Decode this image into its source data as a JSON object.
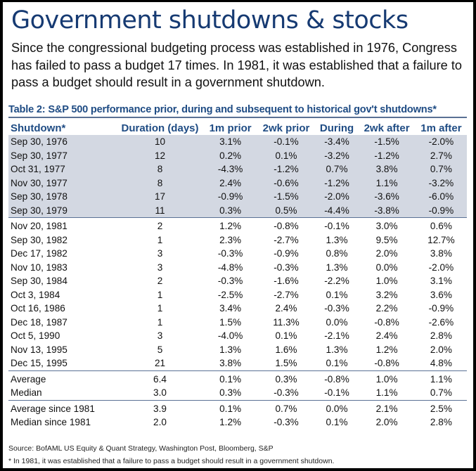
{
  "title": "Government shutdowns & stocks",
  "intro": "Since the congressional budgeting process was established in 1976, Congress has failed to pass a budget 17 times. In 1981, it was established that a failure to pass a budget should result in a government shutdown.",
  "colors": {
    "title": "#163a72",
    "header": "#1f4c84",
    "shaded_row": "#d3d8e2",
    "rule": "#5a7194"
  },
  "chart_data": {
    "type": "table",
    "title": "Table 2: S&P 500 performance prior, during and subsequent to historical gov't shutdowns*",
    "columns": [
      "Shutdown*",
      "Duration (days)",
      "1m prior",
      "2wk prior",
      "During",
      "2wk after",
      "1m after"
    ],
    "groups": [
      {
        "name": "pre-1981",
        "shaded": true,
        "rows": [
          [
            "Sep 30, 1976",
            "10",
            "3.1%",
            "-0.1%",
            "-3.4%",
            "-1.5%",
            "-2.0%"
          ],
          [
            "Sep 30, 1977",
            "12",
            "0.2%",
            "0.1%",
            "-3.2%",
            "-1.2%",
            "2.7%"
          ],
          [
            "Oct 31, 1977",
            "8",
            "-4.3%",
            "-1.2%",
            "0.7%",
            "3.8%",
            "0.7%"
          ],
          [
            "Nov 30, 1977",
            "8",
            "2.4%",
            "-0.6%",
            "-1.2%",
            "1.1%",
            "-3.2%"
          ],
          [
            "Sep 30, 1978",
            "17",
            "-0.9%",
            "-1.5%",
            "-2.0%",
            "-3.6%",
            "-6.0%"
          ],
          [
            "Sep 30, 1979",
            "11",
            "0.3%",
            "0.5%",
            "-4.4%",
            "-3.8%",
            "-0.9%"
          ]
        ]
      },
      {
        "name": "since-1981",
        "shaded": false,
        "rows": [
          [
            "Nov 20, 1981",
            "2",
            "1.2%",
            "-0.8%",
            "-0.1%",
            "3.0%",
            "0.6%"
          ],
          [
            "Sep 30, 1982",
            "1",
            "2.3%",
            "-2.7%",
            "1.3%",
            "9.5%",
            "12.7%"
          ],
          [
            "Dec 17, 1982",
            "3",
            "-0.3%",
            "-0.9%",
            "0.8%",
            "2.0%",
            "3.8%"
          ],
          [
            "Nov 10, 1983",
            "3",
            "-4.8%",
            "-0.3%",
            "1.3%",
            "0.0%",
            "-2.0%"
          ],
          [
            "Sep 30, 1984",
            "2",
            "-0.3%",
            "-1.6%",
            "-2.2%",
            "1.0%",
            "3.1%"
          ],
          [
            "Oct 3, 1984",
            "1",
            "-2.5%",
            "-2.7%",
            "0.1%",
            "3.2%",
            "3.6%"
          ],
          [
            "Oct 16, 1986",
            "1",
            "3.4%",
            "2.4%",
            "-0.3%",
            "2.2%",
            "-0.9%"
          ],
          [
            "Dec 18, 1987",
            "1",
            "1.5%",
            "11.3%",
            "0.0%",
            "-0.8%",
            "-2.6%"
          ],
          [
            "Oct 5, 1990",
            "3",
            "-4.0%",
            "0.1%",
            "-2.1%",
            "2.4%",
            "2.8%"
          ],
          [
            "Nov 13, 1995",
            "5",
            "1.3%",
            "1.6%",
            "1.3%",
            "1.2%",
            "2.0%"
          ],
          [
            "Dec 15, 1995",
            "21",
            "3.8%",
            "1.5%",
            "0.1%",
            "-0.8%",
            "4.8%"
          ]
        ]
      },
      {
        "name": "all-stats",
        "shaded": false,
        "rows": [
          [
            "Average",
            "6.4",
            "0.1%",
            "0.3%",
            "-0.8%",
            "1.0%",
            "1.1%"
          ],
          [
            "Median",
            "3.0",
            "0.3%",
            "-0.3%",
            "-0.1%",
            "1.1%",
            "0.7%"
          ]
        ]
      },
      {
        "name": "since-1981-stats",
        "shaded": false,
        "rows": [
          [
            "Average since 1981",
            "3.9",
            "0.1%",
            "0.7%",
            "0.0%",
            "2.1%",
            "2.5%"
          ],
          [
            "Median since 1981",
            "2.0",
            "1.2%",
            "-0.3%",
            "0.1%",
            "2.0%",
            "2.8%"
          ]
        ]
      }
    ]
  },
  "source": "Source: BofAML US Equity & Quant Strategy, Washington Post, Bloomberg, S&P",
  "footnote": "* In 1981, it was established that a failure to pass a budget should result in a government shutdown."
}
